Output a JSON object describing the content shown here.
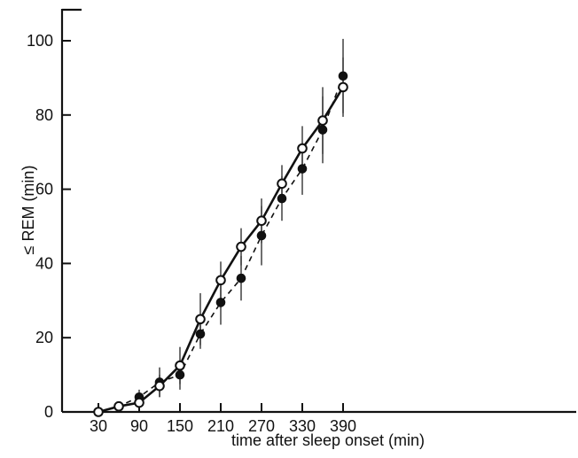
{
  "chart_data": {
    "type": "line",
    "xlabel": "time after sleep onset (min)",
    "ylabel": "≤ REM (min)",
    "xlim": [
      15,
      405
    ],
    "ylim": [
      0,
      100
    ],
    "x_ticks": [
      30,
      90,
      150,
      210,
      270,
      330,
      390
    ],
    "y_ticks": [
      0,
      20,
      40,
      60,
      80,
      100
    ],
    "grid": false,
    "x": [
      30,
      60,
      90,
      120,
      150,
      180,
      210,
      240,
      270,
      300,
      330,
      360,
      390
    ],
    "series": [
      {
        "marker": "open-circle",
        "line": "solid",
        "values": [
          0,
          1.5,
          2.5,
          7,
          12.5,
          25,
          35.5,
          44.5,
          51.5,
          61.5,
          71,
          78.5,
          87.5
        ],
        "error": [
          0,
          0.5,
          1,
          3,
          5,
          7,
          5,
          5,
          6,
          5,
          6,
          9,
          8
        ]
      },
      {
        "marker": "filled-circle",
        "line": "dashed",
        "values": [
          0,
          1.5,
          4,
          8,
          10,
          21,
          29.5,
          36,
          47.5,
          57.5,
          65.5,
          76,
          90.5
        ],
        "error": [
          0,
          1,
          2,
          4,
          4,
          4,
          6,
          6,
          8,
          6,
          7,
          9,
          10
        ]
      }
    ]
  }
}
